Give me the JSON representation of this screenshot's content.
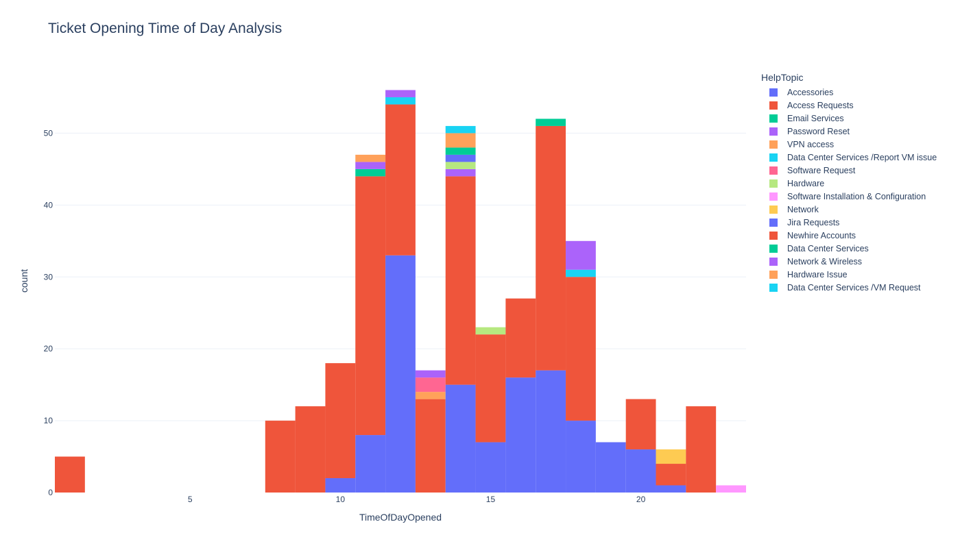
{
  "chart_data": {
    "type": "bar",
    "title": "Ticket Opening Time of Day Analysis",
    "xlabel": "TimeOfDayOpened",
    "ylabel": "count",
    "xlim": [
      0.5,
      23.5
    ],
    "ylim": [
      0,
      59
    ],
    "xticks": [
      5,
      10,
      15,
      20
    ],
    "yticks": [
      0,
      10,
      20,
      30,
      40,
      50
    ],
    "bin_width": 1,
    "barmode": "stack",
    "grid": true,
    "legend_title": "HelpTopic",
    "legend_position": "right",
    "x": [
      1,
      8,
      9,
      10,
      11,
      12,
      13,
      14,
      15,
      16,
      17,
      18,
      19,
      20,
      21,
      22,
      23
    ],
    "series": [
      {
        "name": "Accessories",
        "color": "#636efa",
        "values": [
          0,
          0,
          0,
          2,
          8,
          33,
          0,
          15,
          7,
          16,
          17,
          10,
          7,
          6,
          1,
          0,
          0
        ]
      },
      {
        "name": "Access Requests",
        "color": "#EF553B",
        "values": [
          5,
          10,
          12,
          16,
          36,
          21,
          13,
          29,
          15,
          11,
          34,
          20,
          0,
          7,
          3,
          12,
          0
        ]
      },
      {
        "name": "Email Services",
        "color": "#00cc96",
        "values": [
          0,
          0,
          0,
          0,
          1,
          0,
          0,
          0,
          0,
          0,
          1,
          0,
          0,
          0,
          0,
          0,
          0
        ]
      },
      {
        "name": "Password Reset",
        "color": "#ab63fa",
        "values": [
          0,
          0,
          0,
          0,
          1,
          0,
          0,
          1,
          0,
          0,
          0,
          0,
          0,
          0,
          0,
          0,
          0
        ]
      },
      {
        "name": "VPN access",
        "color": "#FFA15A",
        "values": [
          0,
          0,
          0,
          0,
          1,
          0,
          1,
          0,
          0,
          0,
          0,
          0,
          0,
          0,
          0,
          0,
          0
        ]
      },
      {
        "name": "Data Center Services /Report VM issue",
        "color": "#19d3f3",
        "values": [
          0,
          0,
          0,
          0,
          0,
          1,
          0,
          0,
          0,
          0,
          0,
          1,
          0,
          0,
          0,
          0,
          0
        ]
      },
      {
        "name": "Software Request",
        "color": "#FF6692",
        "values": [
          0,
          0,
          0,
          0,
          0,
          0,
          2,
          0,
          0,
          0,
          0,
          0,
          0,
          0,
          0,
          0,
          0
        ]
      },
      {
        "name": "Hardware",
        "color": "#B6E880",
        "values": [
          0,
          0,
          0,
          0,
          0,
          0,
          0,
          1,
          1,
          0,
          0,
          0,
          0,
          0,
          0,
          0,
          0
        ]
      },
      {
        "name": "Software Installation & Configuration",
        "color": "#FF97FF",
        "values": [
          0,
          0,
          0,
          0,
          0,
          0,
          0,
          0,
          0,
          0,
          0,
          0,
          0,
          0,
          0,
          0,
          1
        ]
      },
      {
        "name": "Network",
        "color": "#FECB52",
        "values": [
          0,
          0,
          0,
          0,
          0,
          0,
          0,
          0,
          0,
          0,
          0,
          0,
          0,
          0,
          2,
          0,
          0
        ]
      },
      {
        "name": "Jira Requests",
        "color": "#636efa",
        "values": [
          0,
          0,
          0,
          0,
          0,
          0,
          0,
          1,
          0,
          0,
          0,
          0,
          0,
          0,
          0,
          0,
          0
        ]
      },
      {
        "name": "Newhire Accounts",
        "color": "#EF553B",
        "values": [
          0,
          0,
          0,
          0,
          0,
          0,
          0,
          0,
          0,
          0,
          0,
          0,
          0,
          0,
          0,
          0,
          0
        ]
      },
      {
        "name": "Data Center Services",
        "color": "#00cc96",
        "values": [
          0,
          0,
          0,
          0,
          0,
          0,
          0,
          1,
          0,
          0,
          0,
          0,
          0,
          0,
          0,
          0,
          0
        ]
      },
      {
        "name": "Network & Wireless",
        "color": "#ab63fa",
        "values": [
          0,
          0,
          0,
          0,
          0,
          1,
          1,
          0,
          0,
          0,
          0,
          4,
          0,
          0,
          0,
          0,
          0
        ]
      },
      {
        "name": "Hardware Issue",
        "color": "#FFA15A",
        "values": [
          0,
          0,
          0,
          0,
          0,
          0,
          0,
          2,
          0,
          0,
          0,
          0,
          0,
          0,
          0,
          0,
          0
        ]
      },
      {
        "name": "Data Center Services /VM Request",
        "color": "#19d3f3",
        "values": [
          0,
          0,
          0,
          0,
          0,
          0,
          0,
          1,
          0,
          0,
          0,
          0,
          0,
          0,
          0,
          0,
          0
        ]
      }
    ]
  }
}
